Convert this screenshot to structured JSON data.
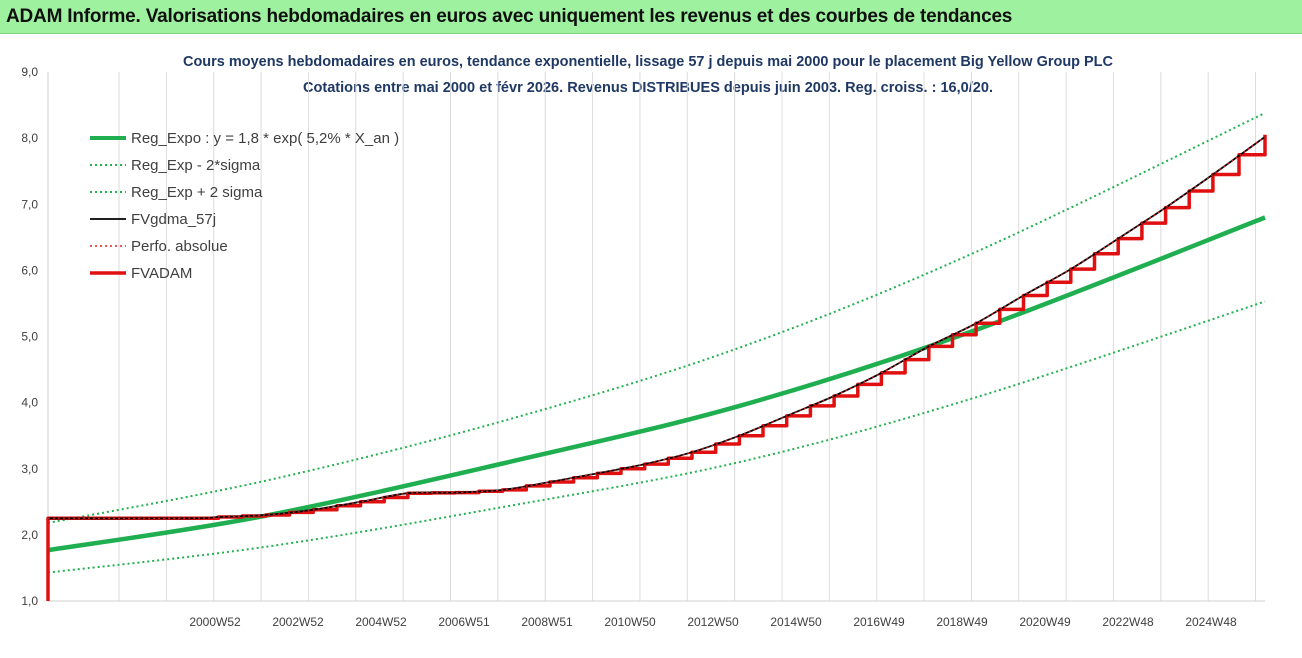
{
  "header": {
    "title": "ADAM Informe. Valorisations hebdomadaires en euros avec uniquement les revenus et des courbes de tendances"
  },
  "chart_data": {
    "type": "line",
    "title_line1": "Cours moyens hebdomadaires en euros, tendance exponentielle, lissage 57 j depuis mai 2000 pour le placement Big Yellow Group PLC",
    "title_line2": "Cotations entre mai 2000 et févr 2026. Revenus DISTRIBUES depuis juin 2003. Reg. croiss. : 16,0/20.",
    "ylim": [
      1.0,
      9.0
    ],
    "y_ticks": [
      "1,0",
      "2,0",
      "3,0",
      "4,0",
      "5,0",
      "6,0",
      "7,0",
      "8,0",
      "9,0"
    ],
    "x_tick_labels": [
      "2000W52",
      "2002W52",
      "2004W52",
      "2006W51",
      "2008W51",
      "2010W50",
      "2012W50",
      "2014W50",
      "2016W49",
      "2018W49",
      "2020W49",
      "2022W48",
      "2024W48"
    ],
    "x_range": [
      2000.4,
      2026.1
    ],
    "grid": "vertical",
    "legend_position": "top-left",
    "colors": {
      "reg": "#1fae50",
      "band": "#23b04f",
      "fvgdma": "#000000",
      "perfo": "#e02020",
      "fvadam": "#e01010"
    },
    "series": [
      {
        "name": "Reg_Expo : y = 1,8 * exp( 5,2% *  X_an )",
        "style": "solid-thick",
        "color": "#1fae50",
        "x": [
          2000.4,
          2004.85,
          2010.0,
          2015.0,
          2020.0,
          2026.1
        ],
        "values": [
          1.77,
          2.27,
          3.08,
          3.95,
          5.1,
          6.8
        ]
      },
      {
        "name": "Reg_Exp - 2*sigma",
        "style": "dotted",
        "color": "#23b04f",
        "x": [
          2000.4,
          2005.0,
          2010.0,
          2015.0,
          2020.0,
          2026.1
        ],
        "values": [
          1.43,
          1.82,
          2.42,
          3.1,
          4.08,
          5.53
        ]
      },
      {
        "name": "Reg_Exp + 2 sigma",
        "style": "dotted",
        "color": "#23b04f",
        "x": [
          2000.4,
          2005.0,
          2010.0,
          2015.0,
          2020.0,
          2026.1
        ],
        "values": [
          2.18,
          2.82,
          3.72,
          4.83,
          6.28,
          8.38
        ]
      },
      {
        "name": "FVgdma_57j",
        "style": "solid-thin",
        "color": "#000000",
        "x": [
          2000.4,
          2003.4,
          2004.0,
          2005.0,
          2006.0,
          2007.0,
          2008.0,
          2009.0,
          2010.0,
          2011.0,
          2012.0,
          2013.0,
          2014.0,
          2015.0,
          2016.0,
          2017.0,
          2018.0,
          2019.0,
          2020.0,
          2021.0,
          2022.0,
          2023.0,
          2024.0,
          2025.0,
          2026.1
        ],
        "values": [
          2.25,
          2.25,
          2.27,
          2.3,
          2.38,
          2.5,
          2.63,
          2.64,
          2.68,
          2.8,
          2.93,
          3.07,
          3.25,
          3.5,
          3.8,
          4.1,
          4.45,
          4.85,
          5.2,
          5.62,
          6.02,
          6.48,
          6.95,
          7.45,
          8.02
        ]
      },
      {
        "name": "Perfo. absolue",
        "style": "dotted",
        "color": "#e02020",
        "x": [
          2000.4,
          2003.4,
          2004.0,
          2005.0,
          2006.0,
          2007.0,
          2008.0,
          2009.0,
          2010.0,
          2011.0,
          2012.0,
          2013.0,
          2014.0,
          2015.0,
          2016.0,
          2017.0,
          2018.0,
          2019.0,
          2020.0,
          2021.0,
          2022.0,
          2023.0,
          2024.0,
          2025.0,
          2026.1
        ],
        "values": [
          2.25,
          2.25,
          2.27,
          2.3,
          2.38,
          2.5,
          2.63,
          2.64,
          2.68,
          2.8,
          2.93,
          3.07,
          3.25,
          3.5,
          3.8,
          4.1,
          4.45,
          4.85,
          5.2,
          5.62,
          6.02,
          6.48,
          6.95,
          7.45,
          8.02
        ]
      },
      {
        "name": "FVADAM",
        "style": "step",
        "color": "#e01010",
        "x": [
          2000.4,
          2000.4,
          2003.4,
          2004.0,
          2005.0,
          2006.0,
          2007.0,
          2008.0,
          2009.0,
          2010.0,
          2011.0,
          2012.0,
          2013.0,
          2014.0,
          2015.0,
          2016.0,
          2017.0,
          2018.0,
          2019.0,
          2020.0,
          2021.0,
          2022.0,
          2023.0,
          2024.0,
          2025.0,
          2026.1
        ],
        "values": [
          1.0,
          2.25,
          2.25,
          2.27,
          2.3,
          2.38,
          2.5,
          2.63,
          2.64,
          2.68,
          2.8,
          2.93,
          3.07,
          3.25,
          3.5,
          3.8,
          4.1,
          4.45,
          4.85,
          5.2,
          5.62,
          6.02,
          6.48,
          6.95,
          7.45,
          8.05
        ]
      }
    ]
  }
}
